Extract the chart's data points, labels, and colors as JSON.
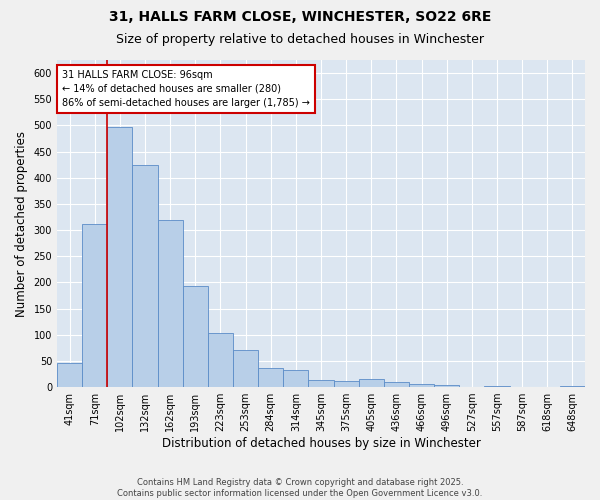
{
  "title_line1": "31, HALLS FARM CLOSE, WINCHESTER, SO22 6RE",
  "title_line2": "Size of property relative to detached houses in Winchester",
  "xlabel": "Distribution of detached houses by size in Winchester",
  "ylabel": "Number of detached properties",
  "categories": [
    "41sqm",
    "71sqm",
    "102sqm",
    "132sqm",
    "162sqm",
    "193sqm",
    "223sqm",
    "253sqm",
    "284sqm",
    "314sqm",
    "345sqm",
    "375sqm",
    "405sqm",
    "436sqm",
    "466sqm",
    "496sqm",
    "527sqm",
    "557sqm",
    "587sqm",
    "618sqm",
    "648sqm"
  ],
  "values": [
    46,
    312,
    497,
    424,
    319,
    194,
    104,
    70,
    37,
    32,
    13,
    12,
    15,
    10,
    6,
    4,
    0,
    3,
    0,
    0,
    3
  ],
  "bar_color": "#b8cfe8",
  "bar_edge_color": "#5b8cc8",
  "background_color": "#dce6f1",
  "grid_color": "#ffffff",
  "vline_color": "#cc0000",
  "annotation_text": "31 HALLS FARM CLOSE: 96sqm\n← 14% of detached houses are smaller (280)\n86% of semi-detached houses are larger (1,785) →",
  "annotation_box_color": "#cc0000",
  "ylim": [
    0,
    625
  ],
  "yticks": [
    0,
    50,
    100,
    150,
    200,
    250,
    300,
    350,
    400,
    450,
    500,
    550,
    600
  ],
  "footer": "Contains HM Land Registry data © Crown copyright and database right 2025.\nContains public sector information licensed under the Open Government Licence v3.0.",
  "title_fontsize": 10,
  "subtitle_fontsize": 9,
  "tick_fontsize": 7,
  "ylabel_fontsize": 8.5,
  "xlabel_fontsize": 8.5,
  "fig_bg": "#f0f0f0"
}
